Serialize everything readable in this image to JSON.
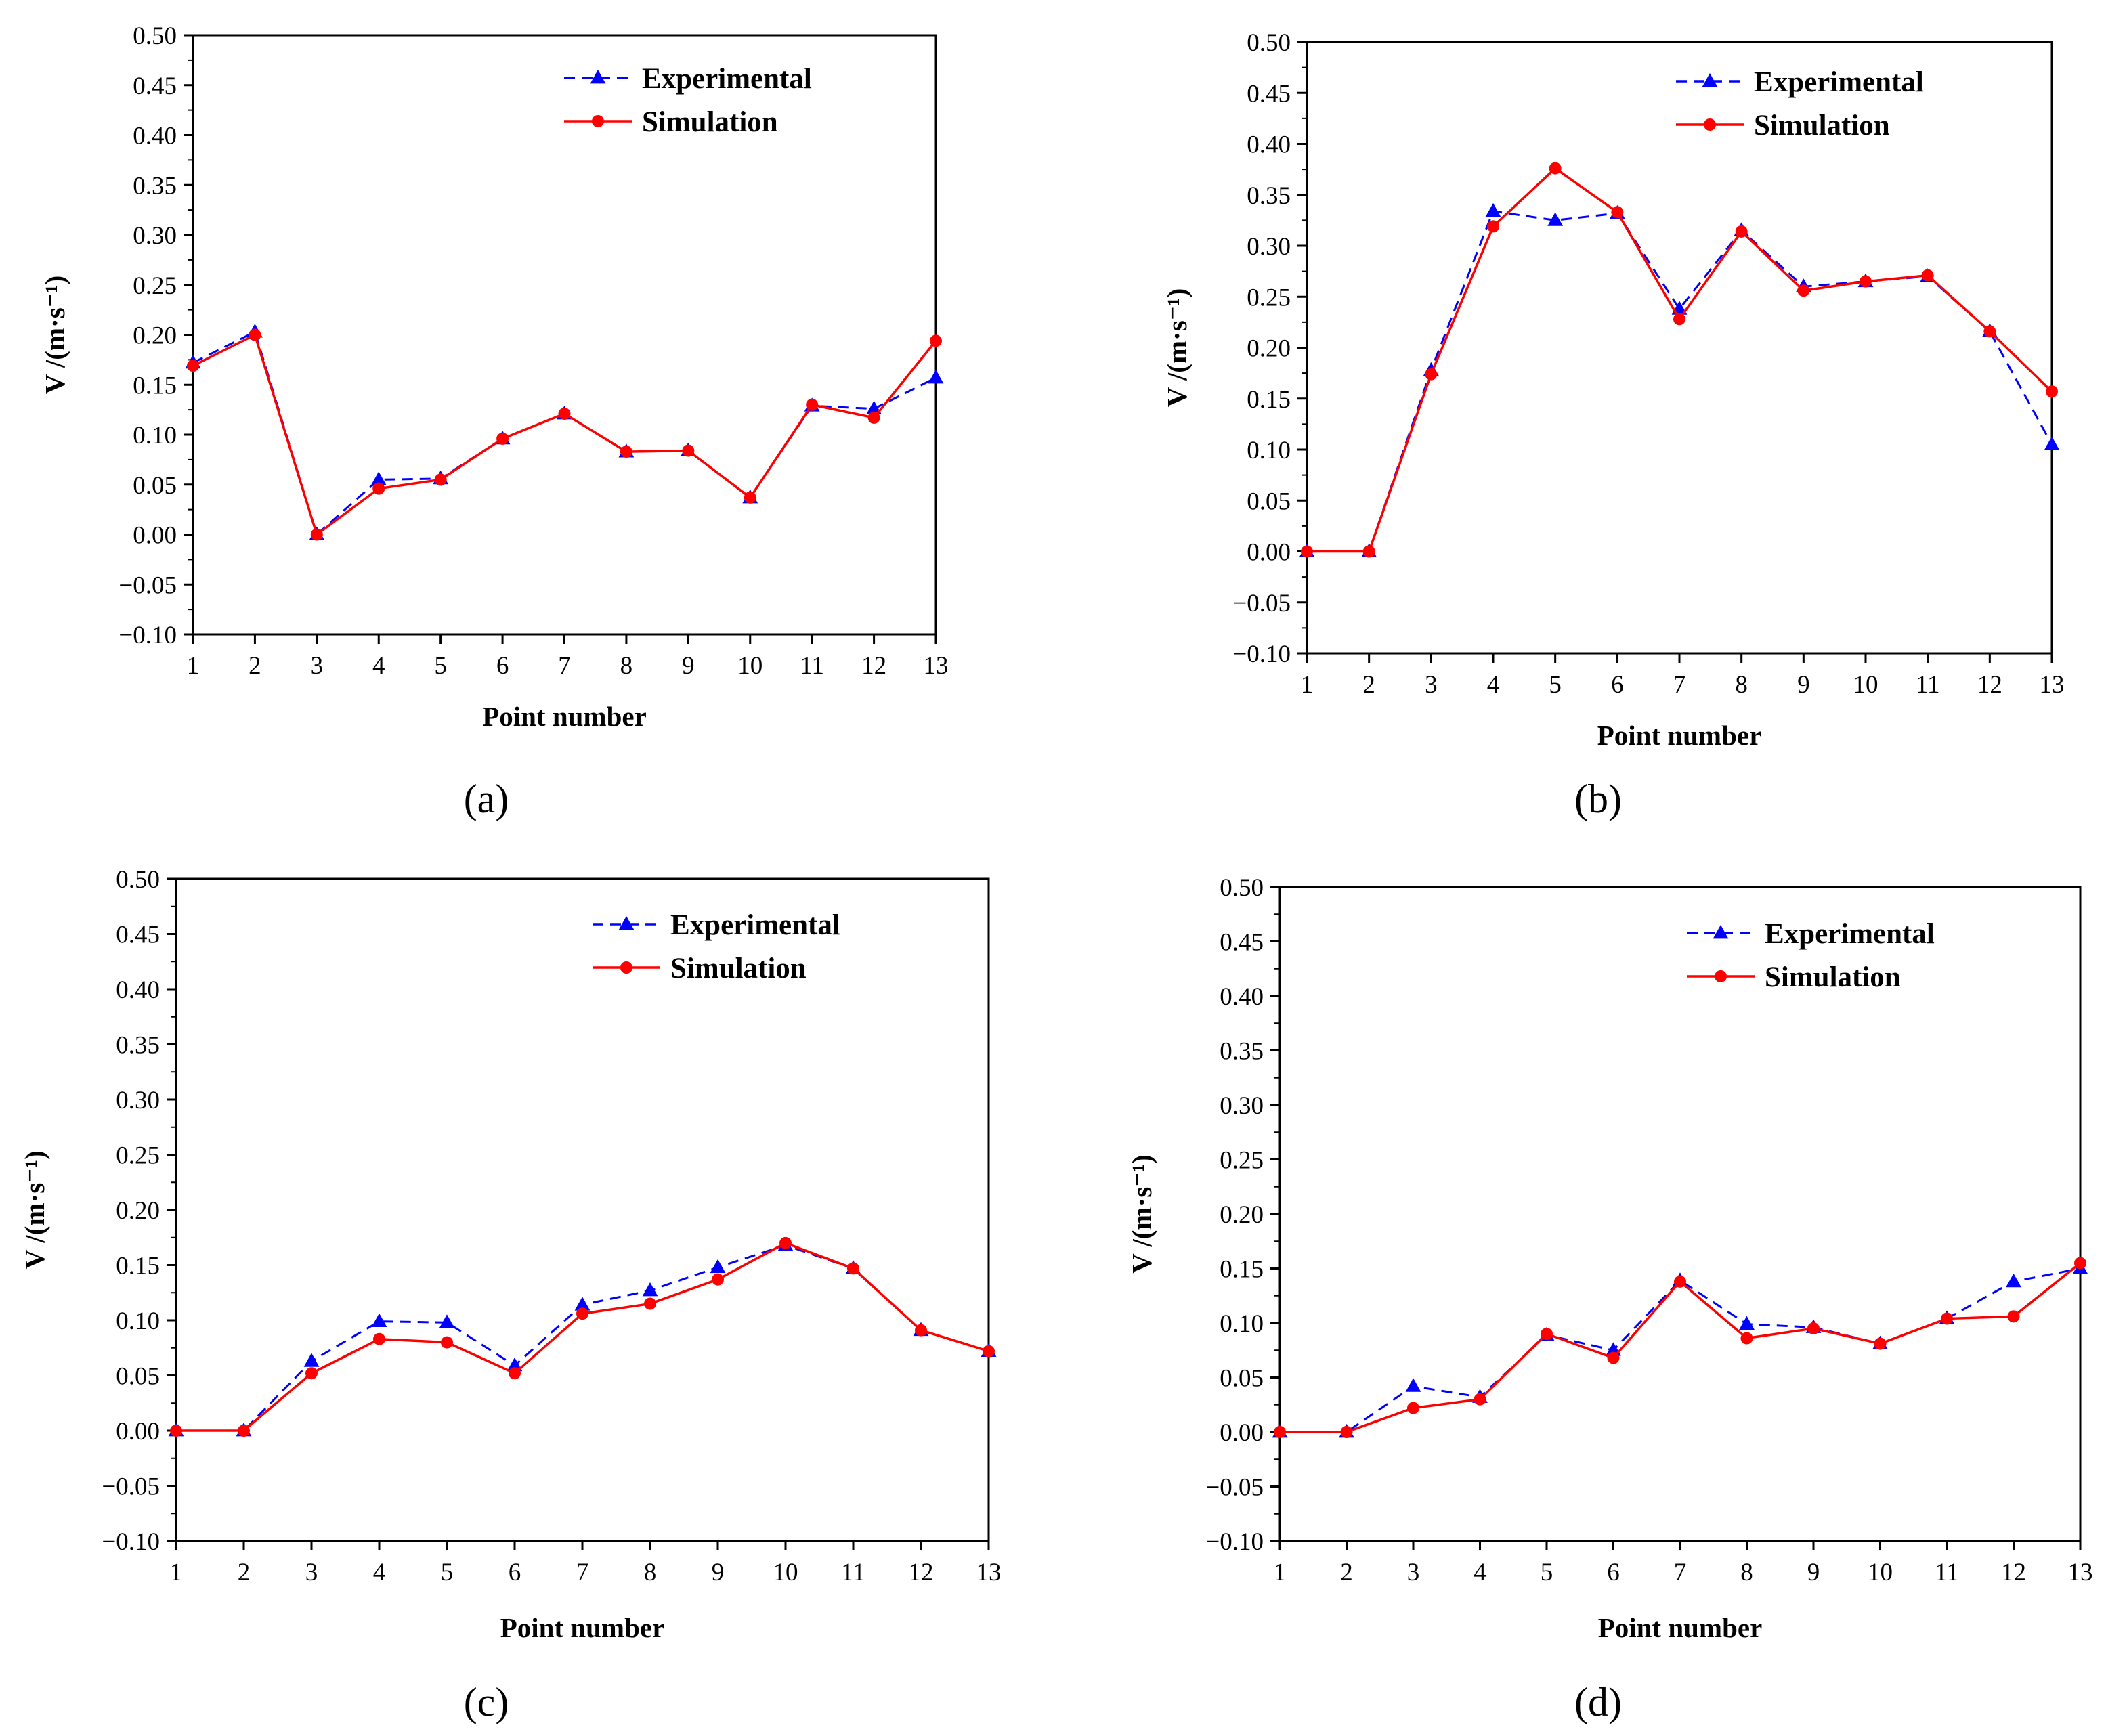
{
  "figure": {
    "colors": {
      "experimental": "#0000ff",
      "simulation": "#ff0000",
      "axis": "#000000",
      "background": "#ffffff"
    }
  },
  "chart_data": [
    {
      "id": "a",
      "panel_label": "(a)",
      "type": "line",
      "xlabel": "Point number",
      "ylabel": "V /(m·s⁻¹)",
      "x": [
        1,
        2,
        3,
        4,
        5,
        6,
        7,
        8,
        9,
        10,
        11,
        12,
        13
      ],
      "xticks": [
        "1",
        "2",
        "3",
        "4",
        "5",
        "6",
        "7",
        "8",
        "9",
        "10",
        "11",
        "12",
        "13"
      ],
      "yticks": [
        "−0.10",
        "−0.05",
        "0.00",
        "0.05",
        "0.10",
        "0.15",
        "0.20",
        "0.25",
        "0.30",
        "0.35",
        "0.40",
        "0.45",
        "0.50"
      ],
      "xlim": [
        1,
        13
      ],
      "ylim": [
        -0.1,
        0.5
      ],
      "legend_position": "top-right",
      "series": [
        {
          "name": "Experimental",
          "style": "dashed-triangle",
          "values": [
            0.172,
            0.203,
            0.0,
            0.055,
            0.056,
            0.096,
            0.121,
            0.083,
            0.084,
            0.037,
            0.129,
            0.126,
            0.157
          ]
        },
        {
          "name": "Simulation",
          "style": "solid-circle",
          "values": [
            0.169,
            0.2,
            0.0,
            0.046,
            0.055,
            0.096,
            0.121,
            0.083,
            0.084,
            0.037,
            0.13,
            0.117,
            0.194
          ]
        }
      ]
    },
    {
      "id": "b",
      "panel_label": "(b)",
      "type": "line",
      "xlabel": "Point number",
      "ylabel": "V /(m·s⁻¹)",
      "x": [
        1,
        2,
        3,
        4,
        5,
        6,
        7,
        8,
        9,
        10,
        11,
        12,
        13
      ],
      "xticks": [
        "1",
        "2",
        "3",
        "4",
        "5",
        "6",
        "7",
        "8",
        "9",
        "10",
        "11",
        "12",
        "13"
      ],
      "yticks": [
        "−0.10",
        "−0.05",
        "0.00",
        "0.05",
        "0.10",
        "0.15",
        "0.20",
        "0.25",
        "0.30",
        "0.35",
        "0.40",
        "0.45",
        "0.50"
      ],
      "xlim": [
        1,
        13
      ],
      "ylim": [
        -0.1,
        0.5
      ],
      "legend_position": "top-right",
      "series": [
        {
          "name": "Experimental",
          "style": "dashed-triangle",
          "values": [
            0.0,
            0.0,
            0.178,
            0.334,
            0.325,
            0.332,
            0.238,
            0.315,
            0.26,
            0.265,
            0.27,
            0.216,
            0.105
          ]
        },
        {
          "name": "Simulation",
          "style": "solid-circle",
          "values": [
            0.0,
            0.0,
            0.174,
            0.319,
            0.376,
            0.333,
            0.228,
            0.314,
            0.256,
            0.265,
            0.271,
            0.216,
            0.157
          ]
        }
      ]
    },
    {
      "id": "c",
      "panel_label": "(c)",
      "type": "line",
      "xlabel": "Point number",
      "ylabel": "V /(m·s⁻¹)",
      "x": [
        1,
        2,
        3,
        4,
        5,
        6,
        7,
        8,
        9,
        10,
        11,
        12,
        13
      ],
      "xticks": [
        "1",
        "2",
        "3",
        "4",
        "5",
        "6",
        "7",
        "8",
        "9",
        "10",
        "11",
        "12",
        "13"
      ],
      "yticks": [
        "−0.10",
        "−0.05",
        "0.00",
        "0.05",
        "0.10",
        "0.15",
        "0.20",
        "0.25",
        "0.30",
        "0.35",
        "0.40",
        "0.45",
        "0.50"
      ],
      "xlim": [
        1,
        13
      ],
      "ylim": [
        -0.1,
        0.5
      ],
      "legend_position": "top-right",
      "series": [
        {
          "name": "Experimental",
          "style": "dashed-triangle",
          "values": [
            0.0,
            0.0,
            0.063,
            0.099,
            0.098,
            0.059,
            0.114,
            0.127,
            0.148,
            0.168,
            0.147,
            0.091,
            0.072
          ]
        },
        {
          "name": "Simulation",
          "style": "solid-circle",
          "values": [
            0.0,
            0.0,
            0.052,
            0.083,
            0.08,
            0.052,
            0.106,
            0.115,
            0.137,
            0.17,
            0.147,
            0.091,
            0.072
          ]
        }
      ]
    },
    {
      "id": "d",
      "panel_label": "(d)",
      "type": "line",
      "xlabel": "Point number",
      "ylabel": "V /(m·s⁻¹)",
      "x": [
        1,
        2,
        3,
        4,
        5,
        6,
        7,
        8,
        9,
        10,
        11,
        12,
        13
      ],
      "xticks": [
        "1",
        "2",
        "3",
        "4",
        "5",
        "6",
        "7",
        "8",
        "9",
        "10",
        "11",
        "12",
        "13"
      ],
      "yticks": [
        "−0.10",
        "−0.05",
        "0.00",
        "0.05",
        "0.10",
        "0.15",
        "0.20",
        "0.25",
        "0.30",
        "0.35",
        "0.40",
        "0.45",
        "0.50"
      ],
      "xlim": [
        1,
        13
      ],
      "ylim": [
        -0.1,
        0.5
      ],
      "legend_position": "top-right",
      "series": [
        {
          "name": "Experimental",
          "style": "dashed-triangle",
          "values": [
            0.0,
            0.0,
            0.042,
            0.032,
            0.089,
            0.075,
            0.139,
            0.099,
            0.096,
            0.081,
            0.104,
            0.138,
            0.15
          ]
        },
        {
          "name": "Simulation",
          "style": "solid-circle",
          "values": [
            0.0,
            0.0,
            0.022,
            0.03,
            0.09,
            0.068,
            0.138,
            0.086,
            0.095,
            0.081,
            0.104,
            0.106,
            0.155
          ]
        }
      ]
    }
  ]
}
